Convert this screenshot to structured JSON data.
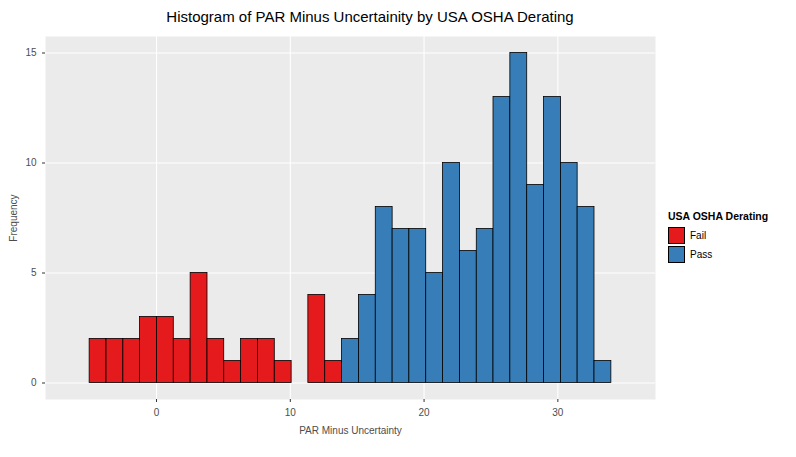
{
  "chart_data": {
    "type": "histogram",
    "title": "Histogram of PAR Minus Uncertainity by USA OSHA Derating",
    "x_label": "PAR Minus Uncertainty",
    "y_label": "Frequency",
    "legend_title": "USA OSHA Derating",
    "bins": [
      -5,
      -3.74,
      -2.48,
      -1.23,
      0.03,
      1.29,
      2.55,
      3.81,
      5.06,
      6.32,
      7.58,
      8.84,
      10.1,
      11.35,
      12.61,
      13.87,
      15.13,
      16.39,
      17.65,
      18.9,
      20.16,
      21.42,
      22.68,
      23.94,
      25.19,
      26.45,
      27.71,
      28.97,
      30.23,
      31.48,
      32.74,
      34
    ],
    "series": [
      {
        "name": "Fail",
        "color": "#E41A1C",
        "values": [
          2,
          2,
          2,
          3,
          3,
          2,
          5,
          2,
          1,
          2,
          2,
          1,
          0,
          4,
          1,
          0,
          0,
          0,
          0,
          0,
          0,
          0,
          0,
          0,
          0,
          0,
          0,
          0,
          0,
          0,
          0
        ]
      },
      {
        "name": "Pass",
        "color": "#377EB8",
        "values": [
          0,
          0,
          0,
          0,
          0,
          0,
          0,
          0,
          0,
          0,
          0,
          0,
          0,
          0,
          0,
          2,
          4,
          8,
          7,
          7,
          5,
          10,
          6,
          7,
          13,
          15,
          9,
          13,
          10,
          8,
          1
        ]
      }
    ],
    "xlim": [
      -8.3,
      37.3
    ],
    "xticks": [
      0,
      10,
      20,
      30
    ],
    "ylim": [
      -0.75,
      15.75
    ],
    "yticks": [
      0,
      5,
      10,
      15
    ],
    "grid": true,
    "legend": "right"
  }
}
